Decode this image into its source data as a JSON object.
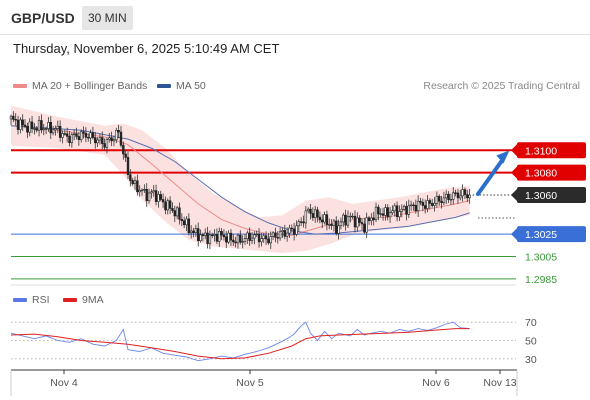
{
  "header": {
    "symbol": "GBP/USD",
    "timeframe": "30 MIN"
  },
  "datetime": "Thursday, November 6, 2025 5:10:49 AM CET",
  "legend": {
    "ma20": {
      "label": "MA 20 + Bollinger Bands",
      "color": "#f08a8a"
    },
    "ma50": {
      "label": "MA 50",
      "color": "#2f5597"
    },
    "rsi": {
      "label": "RSI",
      "color": "#5b78e5"
    },
    "rsi_ma": {
      "label": "9MA",
      "color": "#e02020"
    }
  },
  "copyright": "Research © 2025 Trading Central",
  "chart_data": {
    "type": "candlestick",
    "x_ticks": [
      "Nov 4",
      "Nov 5",
      "Nov 6",
      "Nov 13"
    ],
    "price_range": [
      1.2975,
      1.3145
    ],
    "current_price": "1.3060",
    "levels": [
      {
        "label": "1.3100",
        "value": 1.31,
        "kind": "resistance",
        "color": "#e00000"
      },
      {
        "label": "1.3080",
        "value": 1.308,
        "kind": "resistance",
        "color": "#e00000"
      },
      {
        "label": "1.3025",
        "value": 1.3025,
        "kind": "pivot",
        "color": "#3a6fd8"
      },
      {
        "label": "1.3005",
        "value": 1.3005,
        "kind": "support",
        "color": "#3a9a3a"
      },
      {
        "label": "1.2985",
        "value": 1.2985,
        "kind": "support",
        "color": "#3a9a3a"
      }
    ],
    "close_path": [
      [
        0,
        1.3128
      ],
      [
        4,
        1.3123
      ],
      [
        8,
        1.312
      ],
      [
        12,
        1.3121
      ],
      [
        16,
        1.312
      ],
      [
        20,
        1.3118
      ],
      [
        24,
        1.3111
      ],
      [
        28,
        1.3113
      ],
      [
        32,
        1.3114
      ],
      [
        36,
        1.311
      ],
      [
        40,
        1.3106
      ],
      [
        44,
        1.3112
      ],
      [
        46,
        1.3116
      ],
      [
        48,
        1.3098
      ],
      [
        50,
        1.308
      ],
      [
        52,
        1.307
      ],
      [
        55,
        1.3065
      ],
      [
        58,
        1.306
      ],
      [
        61,
        1.3062
      ],
      [
        64,
        1.3055
      ],
      [
        67,
        1.305
      ],
      [
        70,
        1.3045
      ],
      [
        73,
        1.3038
      ],
      [
        76,
        1.303
      ],
      [
        79,
        1.3025
      ],
      [
        82,
        1.3023
      ],
      [
        85,
        1.3022
      ],
      [
        88,
        1.3024
      ],
      [
        91,
        1.3023
      ],
      [
        94,
        1.302
      ],
      [
        97,
        1.3019
      ],
      [
        100,
        1.3021
      ],
      [
        103,
        1.3023
      ],
      [
        106,
        1.3022
      ],
      [
        109,
        1.302
      ],
      [
        112,
        1.3023
      ],
      [
        115,
        1.3025
      ],
      [
        118,
        1.3027
      ],
      [
        121,
        1.3029
      ],
      [
        124,
        1.3036
      ],
      [
        127,
        1.3046
      ],
      [
        130,
        1.3042
      ],
      [
        133,
        1.3038
      ],
      [
        136,
        1.3035
      ],
      [
        139,
        1.303
      ],
      [
        142,
        1.3038
      ],
      [
        145,
        1.304
      ],
      [
        148,
        1.3036
      ],
      [
        151,
        1.3032
      ],
      [
        154,
        1.304
      ],
      [
        157,
        1.3045
      ],
      [
        160,
        1.3043
      ],
      [
        163,
        1.3046
      ],
      [
        166,
        1.3045
      ],
      [
        169,
        1.3048
      ],
      [
        172,
        1.305
      ],
      [
        175,
        1.3052
      ],
      [
        178,
        1.3051
      ],
      [
        181,
        1.3054
      ],
      [
        184,
        1.3056
      ],
      [
        187,
        1.3058
      ],
      [
        190,
        1.306
      ],
      [
        193,
        1.3061
      ],
      [
        196,
        1.306
      ]
    ],
    "ma20_path": [
      [
        0,
        1.3122
      ],
      [
        20,
        1.3118
      ],
      [
        40,
        1.3112
      ],
      [
        50,
        1.3105
      ],
      [
        60,
        1.3088
      ],
      [
        70,
        1.307
      ],
      [
        80,
        1.3052
      ],
      [
        90,
        1.3038
      ],
      [
        100,
        1.303
      ],
      [
        110,
        1.3025
      ],
      [
        120,
        1.3024
      ],
      [
        130,
        1.303
      ],
      [
        140,
        1.3036
      ],
      [
        150,
        1.3039
      ],
      [
        160,
        1.304
      ],
      [
        170,
        1.3044
      ],
      [
        180,
        1.3048
      ],
      [
        190,
        1.3052
      ],
      [
        196,
        1.3055
      ]
    ],
    "bb_upper_path": [
      [
        0,
        1.314
      ],
      [
        20,
        1.313
      ],
      [
        40,
        1.3122
      ],
      [
        48,
        1.3124
      ],
      [
        56,
        1.3118
      ],
      [
        66,
        1.3102
      ],
      [
        76,
        1.308
      ],
      [
        86,
        1.3062
      ],
      [
        96,
        1.305
      ],
      [
        106,
        1.304
      ],
      [
        116,
        1.3042
      ],
      [
        126,
        1.3055
      ],
      [
        136,
        1.3058
      ],
      [
        146,
        1.3052
      ],
      [
        156,
        1.3055
      ],
      [
        166,
        1.3058
      ],
      [
        176,
        1.3062
      ],
      [
        186,
        1.3066
      ],
      [
        196,
        1.3068
      ]
    ],
    "bb_lower_path": [
      [
        0,
        1.3104
      ],
      [
        20,
        1.3102
      ],
      [
        40,
        1.3096
      ],
      [
        48,
        1.3078
      ],
      [
        56,
        1.3056
      ],
      [
        66,
        1.3036
      ],
      [
        76,
        1.302
      ],
      [
        86,
        1.3014
      ],
      [
        96,
        1.3012
      ],
      [
        106,
        1.301
      ],
      [
        116,
        1.3008
      ],
      [
        126,
        1.301
      ],
      [
        136,
        1.3016
      ],
      [
        146,
        1.3024
      ],
      [
        156,
        1.3028
      ],
      [
        166,
        1.303
      ],
      [
        176,
        1.3034
      ],
      [
        186,
        1.3038
      ],
      [
        196,
        1.3042
      ]
    ],
    "ma50_path": [
      [
        0,
        1.3122
      ],
      [
        30,
        1.3118
      ],
      [
        50,
        1.311
      ],
      [
        60,
        1.3102
      ],
      [
        70,
        1.309
      ],
      [
        80,
        1.3074
      ],
      [
        90,
        1.3058
      ],
      [
        100,
        1.3045
      ],
      [
        110,
        1.3035
      ],
      [
        120,
        1.3028
      ],
      [
        130,
        1.3025
      ],
      [
        140,
        1.3026
      ],
      [
        150,
        1.3028
      ],
      [
        160,
        1.303
      ],
      [
        170,
        1.3032
      ],
      [
        180,
        1.3036
      ],
      [
        190,
        1.304
      ],
      [
        196,
        1.3044
      ]
    ],
    "forecast_arrow": {
      "from": [
        197,
        1.306
      ],
      "to": [
        210,
        1.3098
      ]
    },
    "rsi": {
      "ticks": [
        "70",
        "50",
        "30"
      ],
      "range": [
        20,
        80
      ],
      "rsi_path": [
        [
          0,
          58
        ],
        [
          5,
          55
        ],
        [
          10,
          52
        ],
        [
          15,
          55
        ],
        [
          20,
          50
        ],
        [
          25,
          48
        ],
        [
          30,
          52
        ],
        [
          35,
          46
        ],
        [
          40,
          44
        ],
        [
          45,
          50
        ],
        [
          48,
          62
        ],
        [
          50,
          40
        ],
        [
          55,
          38
        ],
        [
          60,
          42
        ],
        [
          65,
          36
        ],
        [
          70,
          34
        ],
        [
          75,
          32
        ],
        [
          80,
          28
        ],
        [
          85,
          30
        ],
        [
          90,
          33
        ],
        [
          95,
          31
        ],
        [
          100,
          35
        ],
        [
          105,
          38
        ],
        [
          110,
          42
        ],
        [
          115,
          48
        ],
        [
          118,
          52
        ],
        [
          121,
          57
        ],
        [
          124,
          66
        ],
        [
          126,
          70
        ],
        [
          128,
          58
        ],
        [
          131,
          50
        ],
        [
          134,
          60
        ],
        [
          137,
          52
        ],
        [
          140,
          58
        ],
        [
          145,
          55
        ],
        [
          148,
          62
        ],
        [
          151,
          56
        ],
        [
          154,
          58
        ],
        [
          158,
          60
        ],
        [
          162,
          58
        ],
        [
          166,
          62
        ],
        [
          170,
          60
        ],
        [
          174,
          63
        ],
        [
          178,
          61
        ],
        [
          182,
          64
        ],
        [
          186,
          68
        ],
        [
          189,
          70
        ],
        [
          192,
          64
        ],
        [
          196,
          63
        ]
      ],
      "ma_path": [
        [
          0,
          56
        ],
        [
          10,
          57
        ],
        [
          20,
          54
        ],
        [
          30,
          50
        ],
        [
          40,
          48
        ],
        [
          45,
          47
        ],
        [
          50,
          46
        ],
        [
          60,
          42
        ],
        [
          70,
          38
        ],
        [
          80,
          33
        ],
        [
          90,
          30
        ],
        [
          100,
          31
        ],
        [
          110,
          36
        ],
        [
          120,
          44
        ],
        [
          126,
          52
        ],
        [
          132,
          55
        ],
        [
          140,
          56
        ],
        [
          150,
          57
        ],
        [
          160,
          58
        ],
        [
          170,
          59
        ],
        [
          180,
          61
        ],
        [
          190,
          63
        ],
        [
          196,
          63
        ]
      ]
    }
  }
}
